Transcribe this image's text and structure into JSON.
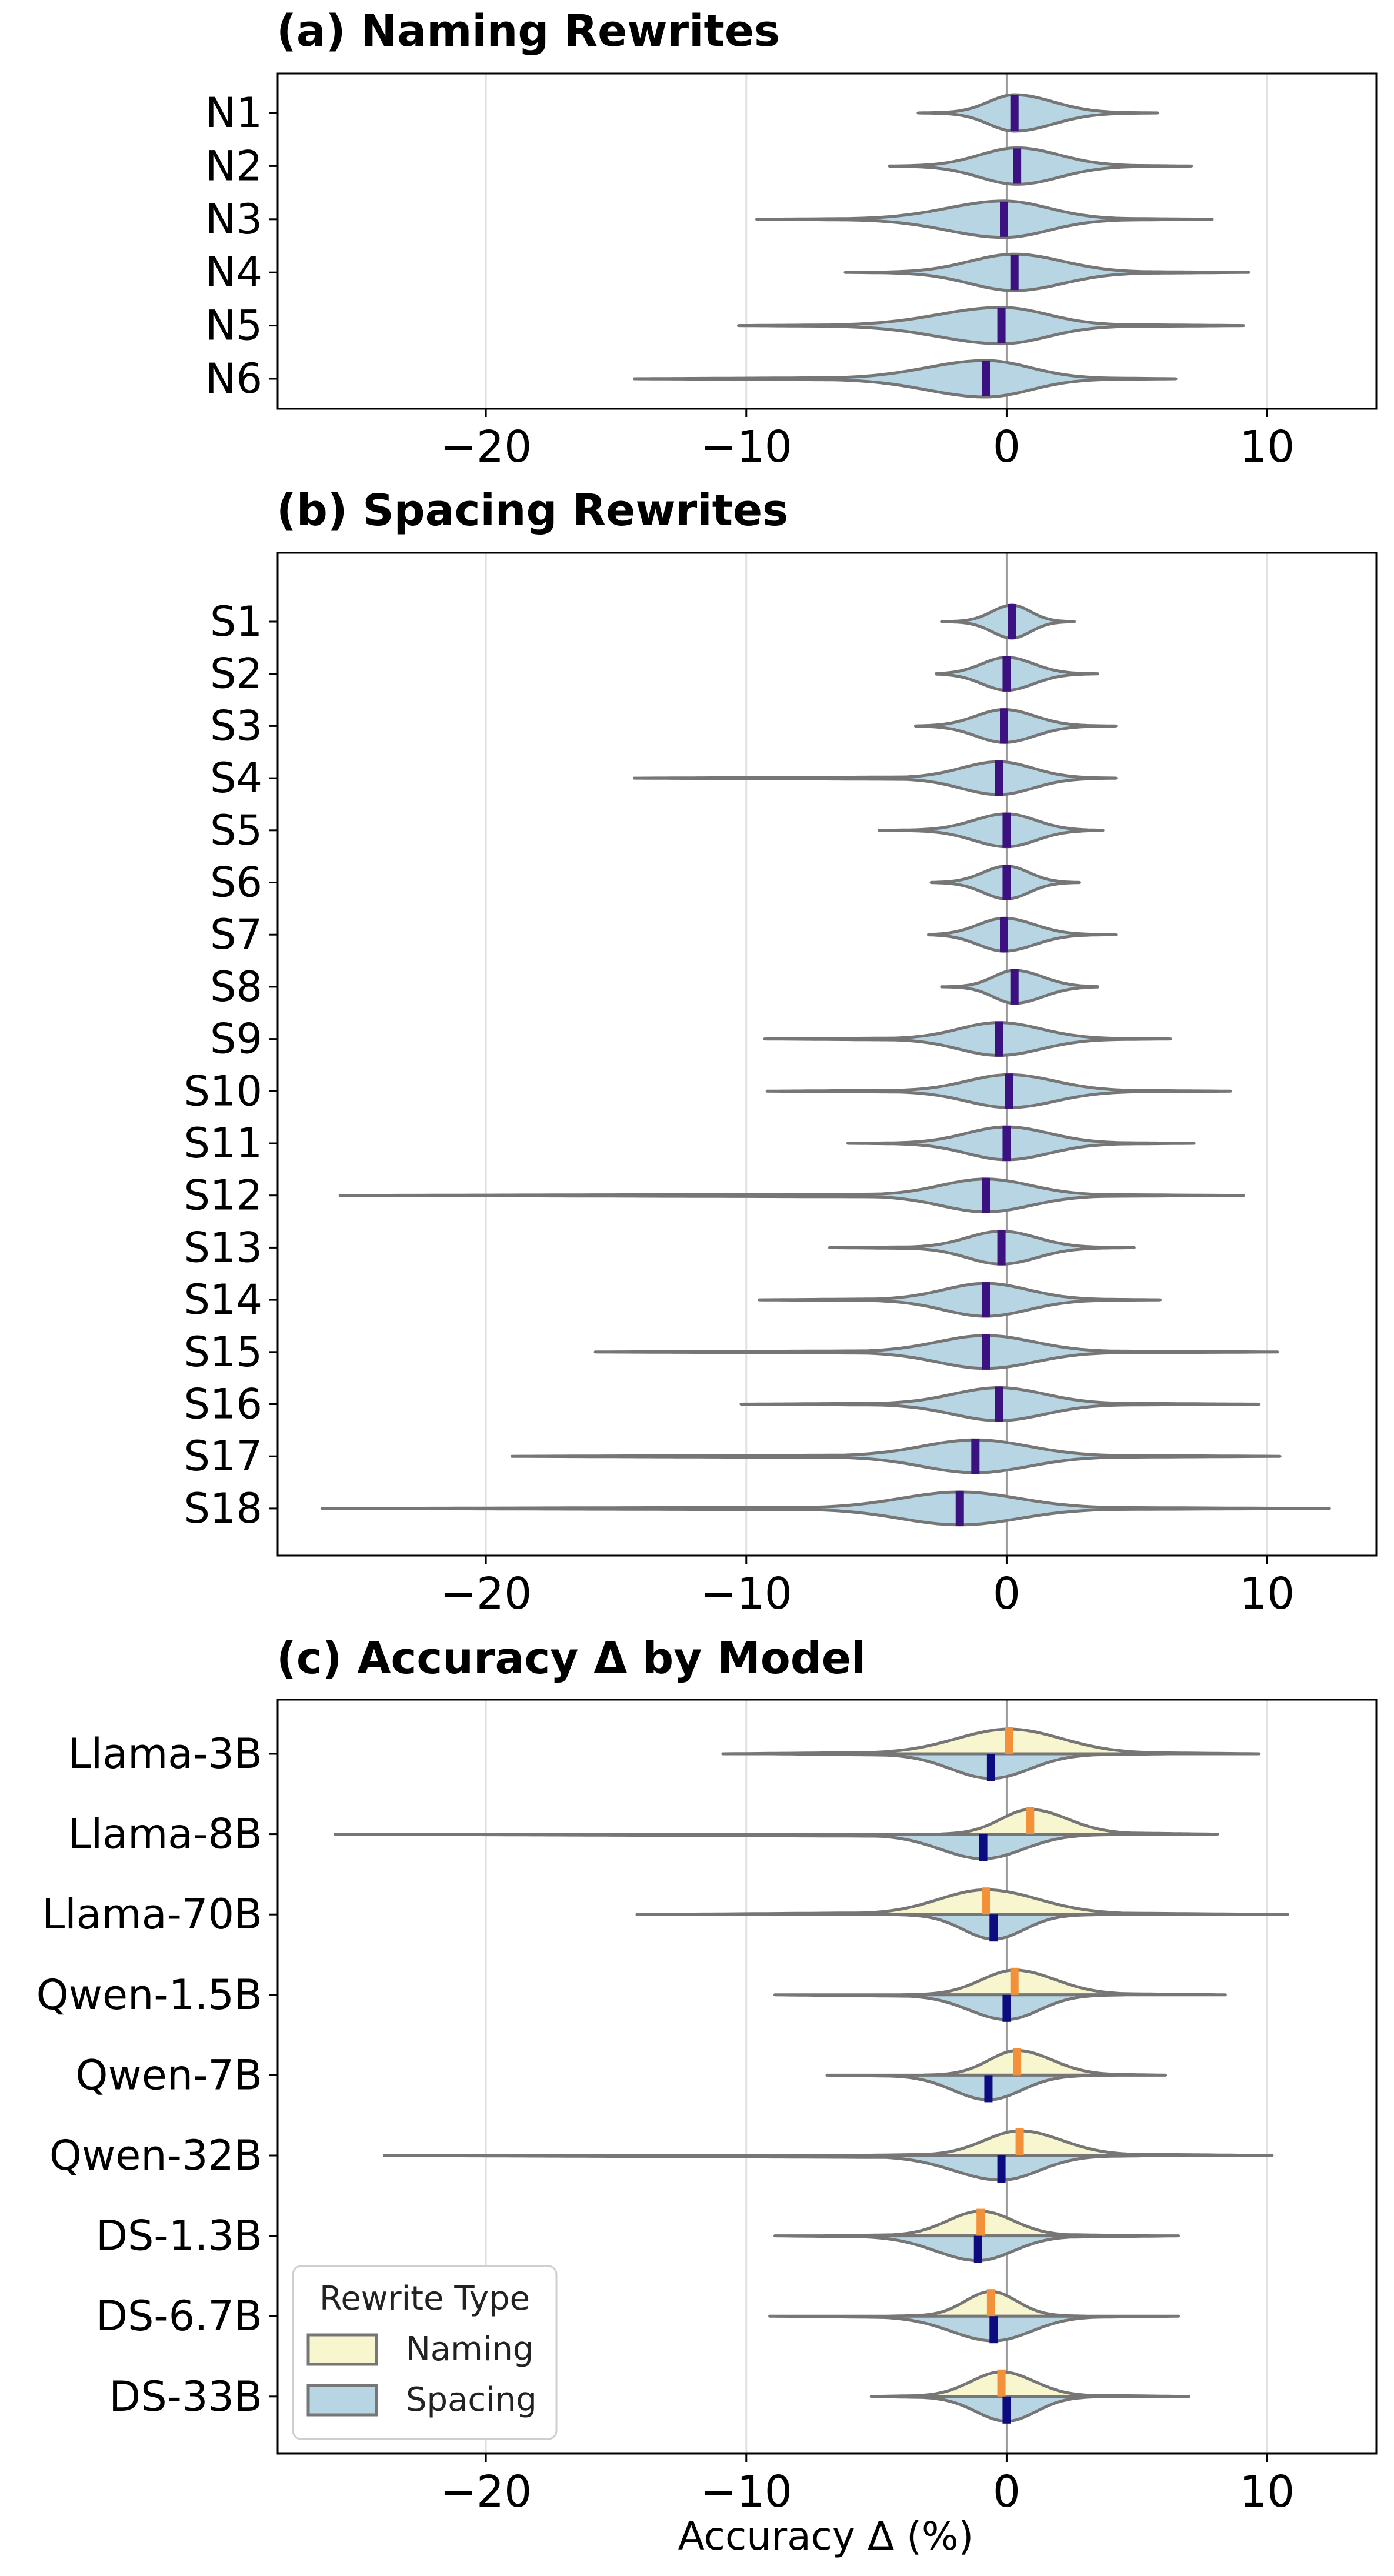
{
  "figure": {
    "xlabel": "Accuracy Δ (%)"
  },
  "colors": {
    "naming_fill": "#f8f6cf",
    "spacing_fill": "#b7d5e3",
    "outline": "#767676",
    "median_single": "#3c1280",
    "median_naming": "#f2913a",
    "median_spacing": "#0c0c80",
    "grid": "#e2e2e2",
    "zero_line": "#9a9a9a"
  },
  "chart_data": [
    {
      "type": "violin",
      "title": "(a) Naming Rewrites",
      "xlim": [
        -28,
        14.2
      ],
      "xticks": [
        -20,
        -10,
        0,
        10
      ],
      "xtick_labels": [
        "−20",
        "−10",
        "0",
        "10"
      ],
      "categories": [
        "N1",
        "N2",
        "N3",
        "N4",
        "N5",
        "N6"
      ],
      "violins": [
        {
          "label": "N1",
          "min": -3.4,
          "max": 5.8,
          "median": 0.3,
          "left_tail": 2.2,
          "right_tail": 3.3
        },
        {
          "label": "N2",
          "min": -4.5,
          "max": 7.1,
          "median": 0.4,
          "left_tail": 3.2,
          "right_tail": 3.6
        },
        {
          "label": "N3",
          "min": -9.6,
          "max": 7.9,
          "median": -0.1,
          "left_tail": 4.8,
          "right_tail": 3.8
        },
        {
          "label": "N4",
          "min": -6.2,
          "max": 9.3,
          "median": 0.3,
          "left_tail": 3.8,
          "right_tail": 4.1
        },
        {
          "label": "N5",
          "min": -10.3,
          "max": 9.1,
          "median": -0.2,
          "left_tail": 5.3,
          "right_tail": 3.9
        },
        {
          "label": "N6",
          "min": -14.3,
          "max": 6.5,
          "median": -0.8,
          "left_tail": 5.0,
          "right_tail": 3.8
        }
      ]
    },
    {
      "type": "violin",
      "title": "(b) Spacing Rewrites",
      "xlim": [
        -28,
        14.2
      ],
      "xticks": [
        -20,
        -10,
        0,
        10
      ],
      "xtick_labels": [
        "−20",
        "−10",
        "0",
        "10"
      ],
      "categories": [
        "S1",
        "S2",
        "S3",
        "S4",
        "S5",
        "S6",
        "S7",
        "S8",
        "S9",
        "S10",
        "S11",
        "S12",
        "S13",
        "S14",
        "S15",
        "S16",
        "S17",
        "S18"
      ],
      "violins": [
        {
          "label": "S1",
          "min": -2.5,
          "max": 2.6,
          "median": 0.2,
          "left_tail": 1.7,
          "right_tail": 1.6
        },
        {
          "label": "S2",
          "min": -2.7,
          "max": 3.5,
          "median": 0.0,
          "left_tail": 2.1,
          "right_tail": 2.3
        },
        {
          "label": "S3",
          "min": -3.5,
          "max": 4.2,
          "median": -0.1,
          "left_tail": 2.4,
          "right_tail": 2.6
        },
        {
          "label": "S4",
          "min": -14.3,
          "max": 4.2,
          "median": -0.3,
          "left_tail": 3.2,
          "right_tail": 2.9
        },
        {
          "label": "S5",
          "min": -4.9,
          "max": 3.7,
          "median": 0.0,
          "left_tail": 2.8,
          "right_tail": 2.5
        },
        {
          "label": "S6",
          "min": -2.9,
          "max": 2.8,
          "median": 0.0,
          "left_tail": 2.0,
          "right_tail": 1.9
        },
        {
          "label": "S7",
          "min": -3.0,
          "max": 4.2,
          "median": -0.1,
          "left_tail": 2.2,
          "right_tail": 2.6
        },
        {
          "label": "S8",
          "min": -2.5,
          "max": 3.5,
          "median": 0.3,
          "left_tail": 1.8,
          "right_tail": 2.4
        },
        {
          "label": "S9",
          "min": -9.3,
          "max": 6.3,
          "median": -0.3,
          "left_tail": 3.4,
          "right_tail": 3.6
        },
        {
          "label": "S10",
          "min": -9.2,
          "max": 8.6,
          "median": 0.1,
          "left_tail": 3.6,
          "right_tail": 3.9
        },
        {
          "label": "S11",
          "min": -6.1,
          "max": 7.2,
          "median": 0.0,
          "left_tail": 3.4,
          "right_tail": 3.6
        },
        {
          "label": "S12",
          "min": -25.6,
          "max": 9.1,
          "median": -0.8,
          "left_tail": 3.8,
          "right_tail": 3.8
        },
        {
          "label": "S13",
          "min": -6.8,
          "max": 4.9,
          "median": -0.2,
          "left_tail": 2.9,
          "right_tail": 3.0
        },
        {
          "label": "S14",
          "min": -9.5,
          "max": 5.9,
          "median": -0.8,
          "left_tail": 3.6,
          "right_tail": 3.6
        },
        {
          "label": "S15",
          "min": -15.8,
          "max": 10.4,
          "median": -0.8,
          "left_tail": 4.1,
          "right_tail": 4.1
        },
        {
          "label": "S16",
          "min": -10.2,
          "max": 9.7,
          "median": -0.3,
          "left_tail": 3.9,
          "right_tail": 3.9
        },
        {
          "label": "S17",
          "min": -19.0,
          "max": 10.5,
          "median": -1.2,
          "left_tail": 4.5,
          "right_tail": 4.5
        },
        {
          "label": "S18",
          "min": -26.3,
          "max": 12.4,
          "median": -1.8,
          "left_tail": 5.0,
          "right_tail": 5.0
        }
      ]
    },
    {
      "type": "split-violin",
      "title": "(c) Accuracy Δ by Model",
      "xlabel": "Accuracy Δ (%)",
      "xlim": [
        -28,
        14.2
      ],
      "xticks": [
        -20,
        -10,
        0,
        10
      ],
      "xtick_labels": [
        "−20",
        "−10",
        "0",
        "10"
      ],
      "categories": [
        "Llama-3B",
        "Llama-8B",
        "Llama-70B",
        "Qwen-1.5B",
        "Qwen-7B",
        "Qwen-32B",
        "DS-1.3B",
        "DS-6.7B",
        "DS-33B"
      ],
      "legend": {
        "title": "Rewrite Type",
        "entries": [
          "Naming",
          "Spacing"
        ],
        "placement": "lower-left"
      },
      "series": [
        {
          "name": "Naming",
          "side": "top",
          "violins": [
            {
              "label": "Llama-3B",
              "min": -10.9,
              "max": 9.7,
              "median": 0.1,
              "left_tail": 4.5,
              "right_tail": 4.5
            },
            {
              "label": "Llama-8B",
              "min": -2.5,
              "max": 8.1,
              "median": 0.9,
              "left_tail": 2.5,
              "right_tail": 3.2
            },
            {
              "label": "Llama-70B",
              "min": -14.2,
              "max": 10.8,
              "median": -0.8,
              "left_tail": 4.0,
              "right_tail": 4.5
            },
            {
              "label": "Qwen-1.5B",
              "min": -4.0,
              "max": 8.4,
              "median": 0.3,
              "left_tail": 2.8,
              "right_tail": 3.5
            },
            {
              "label": "Qwen-7B",
              "min": -3.2,
              "max": 6.1,
              "median": 0.4,
              "left_tail": 2.4,
              "right_tail": 3.0
            },
            {
              "label": "Qwen-32B",
              "min": -6.0,
              "max": 10.2,
              "median": 0.5,
              "left_tail": 3.0,
              "right_tail": 3.6
            },
            {
              "label": "DS-1.3B",
              "min": -7.0,
              "max": 5.5,
              "median": -1.0,
              "left_tail": 2.8,
              "right_tail": 2.8
            },
            {
              "label": "DS-6.7B",
              "min": -4.5,
              "max": 3.0,
              "median": -0.6,
              "left_tail": 2.2,
              "right_tail": 2.2
            },
            {
              "label": "DS-33B",
              "min": -5.2,
              "max": 7.0,
              "median": -0.2,
              "left_tail": 2.6,
              "right_tail": 2.8
            }
          ]
        },
        {
          "name": "Spacing",
          "side": "bottom",
          "violins": [
            {
              "label": "Llama-3B",
              "min": -9.0,
              "max": 6.2,
              "median": -0.6,
              "left_tail": 3.4,
              "right_tail": 3.3
            },
            {
              "label": "Llama-8B",
              "min": -25.8,
              "max": 5.3,
              "median": -0.9,
              "left_tail": 3.6,
              "right_tail": 3.4
            },
            {
              "label": "Llama-70B",
              "min": -4.2,
              "max": 3.8,
              "median": -0.5,
              "left_tail": 2.6,
              "right_tail": 2.6
            },
            {
              "label": "Qwen-1.5B",
              "min": -8.9,
              "max": 4.5,
              "median": 0.0,
              "left_tail": 3.2,
              "right_tail": 2.8
            },
            {
              "label": "Qwen-7B",
              "min": -6.9,
              "max": 4.2,
              "median": -0.7,
              "left_tail": 3.0,
              "right_tail": 2.8
            },
            {
              "label": "Qwen-32B",
              "min": -23.9,
              "max": 6.0,
              "median": -0.2,
              "left_tail": 4.0,
              "right_tail": 3.2
            },
            {
              "label": "DS-1.3B",
              "min": -8.9,
              "max": 6.6,
              "median": -1.1,
              "left_tail": 3.6,
              "right_tail": 3.0
            },
            {
              "label": "DS-6.7B",
              "min": -9.1,
              "max": 6.6,
              "median": -0.5,
              "left_tail": 3.6,
              "right_tail": 3.2
            },
            {
              "label": "DS-33B",
              "min": -5.2,
              "max": 3.8,
              "median": 0.0,
              "left_tail": 2.6,
              "right_tail": 2.5
            }
          ]
        }
      ]
    }
  ]
}
